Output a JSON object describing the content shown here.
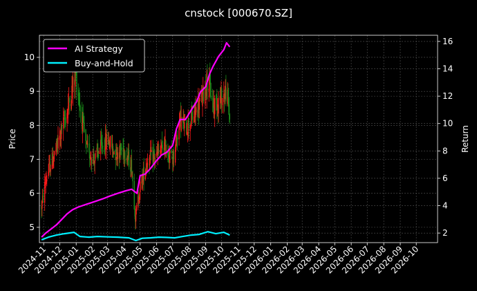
{
  "colors": {
    "background": "#000000",
    "grid": "#555555",
    "axis": "#ffffff",
    "candle_up": "#ff1a1a",
    "candle_down": "#1a8c1a",
    "ai_strategy": "#ff00ff",
    "buy_and_hold": "#00f0ff"
  },
  "chart_data": {
    "type": "line",
    "title": "cnstock [000670.SZ]",
    "ylabel_left": "Price",
    "ylabel_right": "Return",
    "grid": true,
    "legend_position": "upper-left",
    "x_ticks": [
      "2024-11",
      "2024-12",
      "2025-01",
      "2025-02",
      "2025-03",
      "2025-04",
      "2025-05",
      "2025-06",
      "2025-07",
      "2025-08",
      "2025-09",
      "2025-10",
      "2025-11",
      "2025-12",
      "2026-01",
      "2026-02",
      "2026-03",
      "2026-04",
      "2026-05",
      "2026-06",
      "2026-07",
      "2026-08",
      "2026-09",
      "2026-10"
    ],
    "xlim": [
      "2024-10-24",
      "2026-11-10"
    ],
    "left_axis": {
      "ylim": [
        4.55,
        10.65
      ],
      "ticks": [
        5,
        6,
        7,
        8,
        9,
        10
      ]
    },
    "right_axis": {
      "ylim": [
        1.3,
        16.45
      ],
      "ticks": [
        2,
        4,
        6,
        8,
        10,
        12,
        14,
        16
      ]
    },
    "price_candles": {
      "description_anchors": [
        [
          "2024-10-28",
          5.6
        ],
        [
          "2024-11-05",
          6.4
        ],
        [
          "2024-11-15",
          6.9
        ],
        [
          "2024-11-25",
          7.3
        ],
        [
          "2024-12-05",
          7.9
        ],
        [
          "2024-12-15",
          8.4
        ],
        [
          "2024-12-25",
          9.1
        ],
        [
          "2024-12-31",
          9.5
        ],
        [
          "2025-01-08",
          8.6
        ],
        [
          "2025-01-20",
          7.3
        ],
        [
          "2025-02-05",
          7.0
        ],
        [
          "2025-02-15",
          7.3
        ],
        [
          "2025-03-01",
          7.6
        ],
        [
          "2025-03-15",
          7.2
        ],
        [
          "2025-04-01",
          7.3
        ],
        [
          "2025-04-15",
          6.8
        ],
        [
          "2025-04-22",
          5.3
        ],
        [
          "2025-05-01",
          6.2
        ],
        [
          "2025-05-15",
          7.0
        ],
        [
          "2025-06-01",
          7.1
        ],
        [
          "2025-06-15",
          7.4
        ],
        [
          "2025-07-01",
          7.0
        ],
        [
          "2025-07-15",
          8.2
        ],
        [
          "2025-07-25",
          7.9
        ],
        [
          "2025-08-10",
          8.3
        ],
        [
          "2025-08-25",
          8.8
        ],
        [
          "2025-09-05",
          9.4
        ],
        [
          "2025-09-15",
          8.6
        ],
        [
          "2025-10-01",
          8.8
        ],
        [
          "2025-10-10",
          9.0
        ],
        [
          "2025-10-16",
          8.3
        ]
      ],
      "start": "2024-10-28",
      "end": "2025-10-16"
    },
    "series": [
      {
        "name": "AI Strategy",
        "axis": "right",
        "color": "#ff00ff",
        "points": [
          [
            "2024-10-28",
            1.7
          ],
          [
            "2024-11-05",
            2.0
          ],
          [
            "2024-11-15",
            2.3
          ],
          [
            "2024-11-25",
            2.6
          ],
          [
            "2024-12-05",
            3.0
          ],
          [
            "2024-12-15",
            3.4
          ],
          [
            "2024-12-25",
            3.7
          ],
          [
            "2025-01-05",
            3.9
          ],
          [
            "2025-01-20",
            4.1
          ],
          [
            "2025-02-05",
            4.3
          ],
          [
            "2025-02-20",
            4.5
          ],
          [
            "2025-03-05",
            4.7
          ],
          [
            "2025-03-20",
            4.9
          ],
          [
            "2025-04-05",
            5.1
          ],
          [
            "2025-04-15",
            5.2
          ],
          [
            "2025-04-25",
            4.9
          ],
          [
            "2025-05-01",
            6.2
          ],
          [
            "2025-05-10",
            6.3
          ],
          [
            "2025-05-20",
            6.7
          ],
          [
            "2025-06-01",
            7.3
          ],
          [
            "2025-06-10",
            7.7
          ],
          [
            "2025-06-20",
            7.9
          ],
          [
            "2025-07-01",
            8.4
          ],
          [
            "2025-07-08",
            9.6
          ],
          [
            "2025-07-15",
            10.3
          ],
          [
            "2025-07-25",
            10.3
          ],
          [
            "2025-08-05",
            11.0
          ],
          [
            "2025-08-15",
            11.6
          ],
          [
            "2025-08-22",
            12.3
          ],
          [
            "2025-09-01",
            12.7
          ],
          [
            "2025-09-08",
            13.6
          ],
          [
            "2025-09-15",
            14.2
          ],
          [
            "2025-09-25",
            14.9
          ],
          [
            "2025-10-05",
            15.4
          ],
          [
            "2025-10-10",
            15.9
          ],
          [
            "2025-10-16",
            15.6
          ]
        ]
      },
      {
        "name": "Buy-and-Hold",
        "axis": "right",
        "color": "#00f0ff",
        "points": [
          [
            "2024-10-28",
            1.5
          ],
          [
            "2024-11-10",
            1.7
          ],
          [
            "2024-11-25",
            1.85
          ],
          [
            "2024-12-10",
            1.95
          ],
          [
            "2024-12-28",
            2.05
          ],
          [
            "2025-01-08",
            1.75
          ],
          [
            "2025-01-25",
            1.7
          ],
          [
            "2025-02-10",
            1.75
          ],
          [
            "2025-03-01",
            1.72
          ],
          [
            "2025-03-20",
            1.7
          ],
          [
            "2025-04-10",
            1.65
          ],
          [
            "2025-04-23",
            1.45
          ],
          [
            "2025-05-05",
            1.62
          ],
          [
            "2025-05-20",
            1.65
          ],
          [
            "2025-06-05",
            1.7
          ],
          [
            "2025-06-20",
            1.68
          ],
          [
            "2025-07-05",
            1.65
          ],
          [
            "2025-07-20",
            1.75
          ],
          [
            "2025-08-05",
            1.85
          ],
          [
            "2025-08-20",
            1.9
          ],
          [
            "2025-09-05",
            2.1
          ],
          [
            "2025-09-20",
            1.95
          ],
          [
            "2025-10-05",
            2.05
          ],
          [
            "2025-10-16",
            1.85
          ]
        ]
      }
    ]
  }
}
